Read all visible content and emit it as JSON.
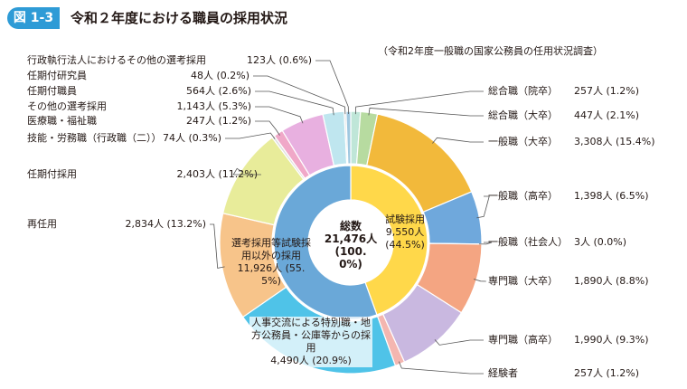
{
  "chart_data": {
    "type": "donut",
    "figure_label": "図 1-3",
    "title": "令和２年度における職員の採用状況",
    "subtitle": "（令和2年度一般職の国家公務員の任用状況調査）",
    "total_label": "総数",
    "total": 21476,
    "total_value_label": "21,476人 (100.0%)",
    "rings": [
      {
        "categories": [
          "試験採用",
          "選考採用等試験採用以外の採用"
        ],
        "values": [
          9550,
          11926
        ],
        "value_labels": [
          "9,550人 (44.5%)",
          "11,926人 (55.5%)"
        ],
        "colors": [
          "#ffd84a",
          "#6aa8d8"
        ]
      },
      {
        "categories": [
          "総合職（院卒）",
          "総合職（大卒）",
          "一般職（大卒）",
          "一般職（高卒）",
          "一般職（社会人）",
          "専門職（大卒）",
          "専門職（高卒）",
          "経験者",
          "人事交流による特別職・地方公務員・公庫等からの採用",
          "再任用",
          "任期付採用",
          "技能・労務職（行政職（二））",
          "医療職・福祉職",
          "その他の選考採用",
          "任期付職員",
          "任期付研究員",
          "行政執行法人におけるその他の選考採用"
        ],
        "values": [
          257,
          447,
          3308,
          1398,
          3,
          1890,
          1990,
          257,
          4490,
          2834,
          2403,
          74,
          247,
          1143,
          564,
          48,
          123
        ],
        "value_labels": [
          "257人 (1.2%)",
          "447人 (2.1%)",
          "3,308人 (15.4%)",
          "1,398人 (6.5%)",
          "3人 (0.0%)",
          "1,890人 (8.8%)",
          "1,990人 (9.3%)",
          "257人 (1.2%)",
          "4,490人 (20.9%)",
          "2,834人 (13.2%)",
          "2,403人 (11.2%)",
          "74人 (0.3%)",
          "247人 (1.2%)",
          "1,143人 (5.3%)",
          "564人 (2.6%)",
          "48人 (0.2%)",
          "123人 (0.6%)"
        ],
        "colors": [
          "#bfe6d8",
          "#b7dba0",
          "#f2b93b",
          "#6fa8dc",
          "#9fd0e8",
          "#f4a582",
          "#c9b8e0",
          "#f4b6b0",
          "#4fc3e8",
          "#f7c48a",
          "#e8ec9a",
          "#e0e0e0",
          "#f0a8c8",
          "#e8b0e0",
          "#bfe6ef",
          "#dddddd",
          "#a0c8e0"
        ]
      }
    ]
  }
}
